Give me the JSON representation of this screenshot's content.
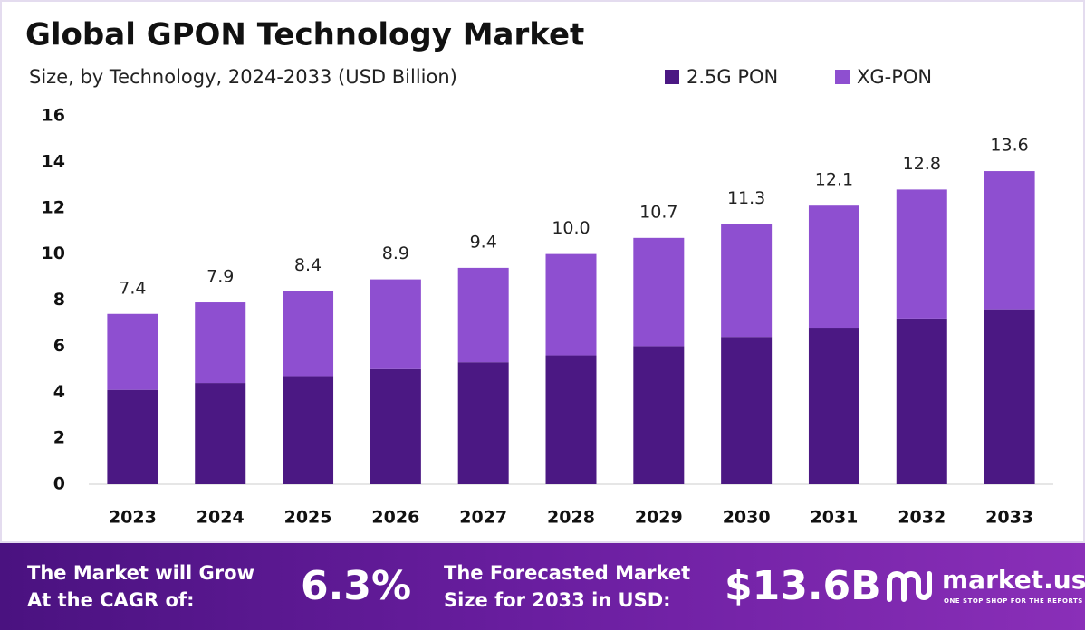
{
  "chart_data": {
    "type": "stacked_bar",
    "title": "Global GPON Technology Market",
    "subtitle": "Size, by Technology, 2024-2033 (USD Billion)",
    "categories": [
      "2023",
      "2024",
      "2025",
      "2026",
      "2027",
      "2028",
      "2029",
      "2030",
      "2031",
      "2032",
      "2033"
    ],
    "series": [
      {
        "name": "2.5G PON",
        "color": "#4b1883",
        "values": [
          4.1,
          4.4,
          4.7,
          5.0,
          5.3,
          5.6,
          6.0,
          6.4,
          6.8,
          7.2,
          7.6
        ]
      },
      {
        "name": "XG-PON",
        "color": "#8e4fd0",
        "values": [
          3.3,
          3.5,
          3.7,
          3.9,
          4.1,
          4.4,
          4.7,
          4.9,
          5.3,
          5.6,
          6.0
        ]
      }
    ],
    "total_labels": [
      "7.4",
      "7.9",
      "8.4",
      "8.9",
      "9.4",
      "10.0",
      "10.7",
      "11.3",
      "12.1",
      "12.8",
      "13.6"
    ],
    "ylim": [
      0,
      16
    ],
    "yticks": [
      0,
      2,
      4,
      6,
      8,
      10,
      12,
      14,
      16
    ],
    "grid": false
  },
  "footer": {
    "cagr_text": [
      "The Market will Grow",
      "At the CAGR of:"
    ],
    "cagr_value": "6.3%",
    "forecast_text": [
      "The Forecasted Market",
      "Size for 2033 in USD:"
    ],
    "forecast_value": "$13.6B",
    "brand": "market.us",
    "tagline": "ONE STOP SHOP FOR THE REPORTS"
  }
}
